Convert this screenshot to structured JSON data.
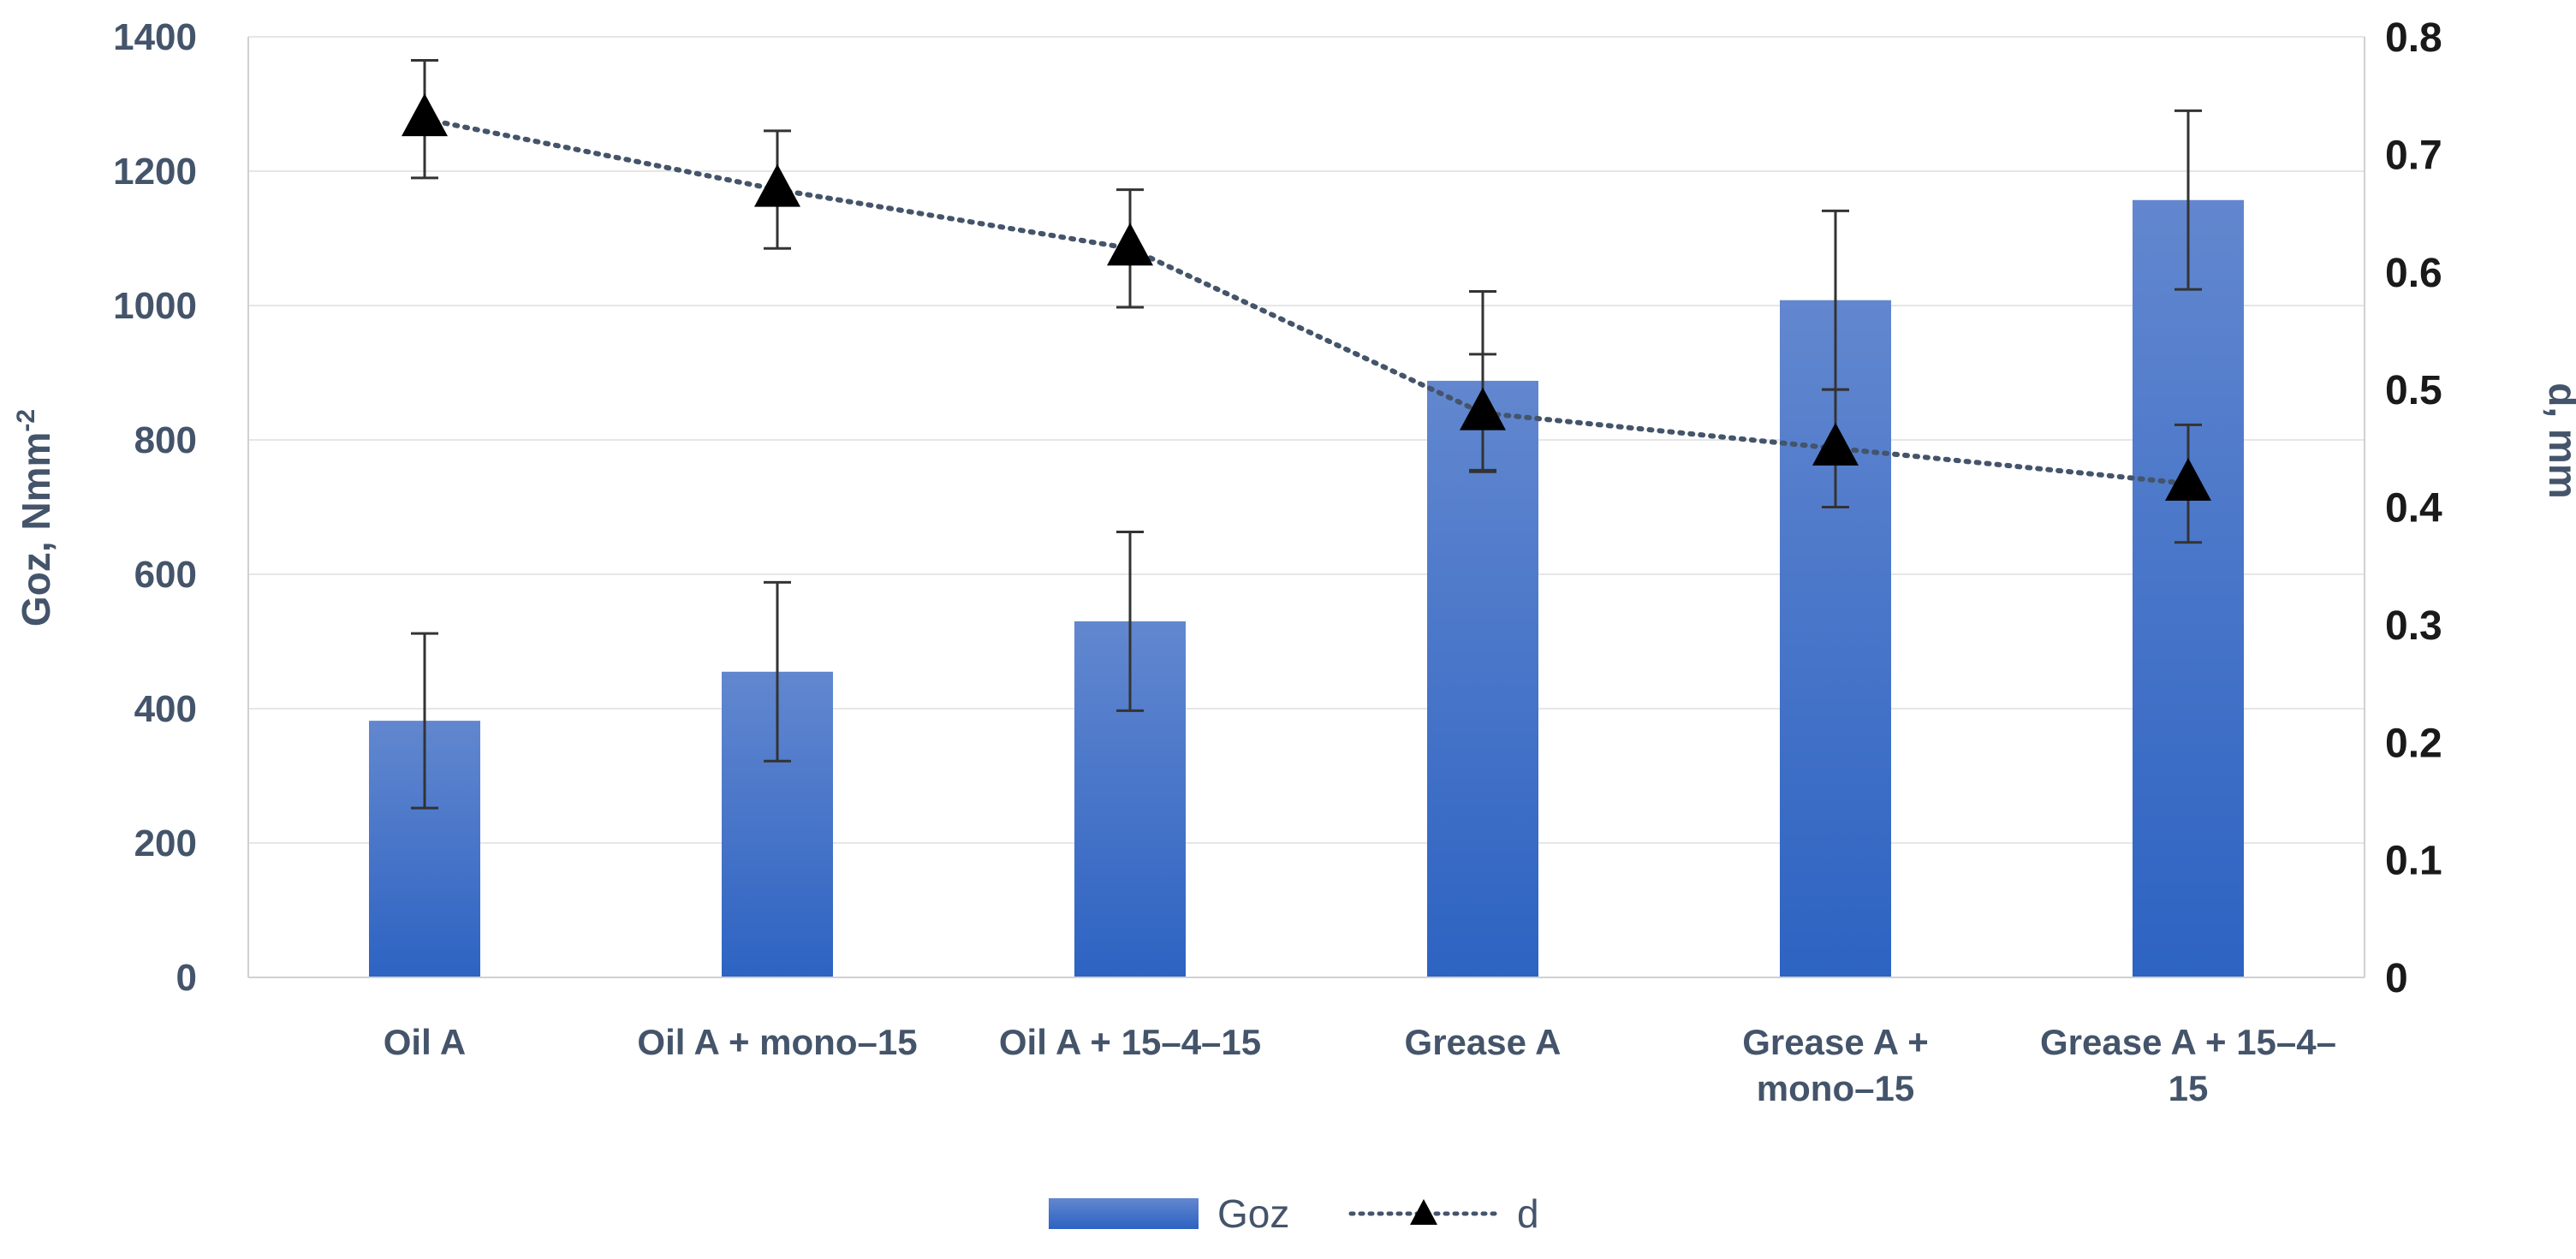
{
  "chart_data": {
    "type": "bar+line",
    "categories": [
      [
        "Oil A"
      ],
      [
        "Oil A + mono–15"
      ],
      [
        "Oil A + 15–4–15"
      ],
      [
        "Grease A"
      ],
      [
        "Grease A +",
        "mono–15"
      ],
      [
        "Grease A + 15–4–",
        "15"
      ]
    ],
    "series": [
      {
        "name": "Goz",
        "type": "bar",
        "axis": "left",
        "values": [
          382,
          455,
          530,
          888,
          1008,
          1157
        ],
        "error": [
          130,
          133,
          133,
          133,
          133,
          133
        ],
        "color": "#3a6fc9"
      },
      {
        "name": "d",
        "type": "line",
        "axis": "right",
        "values": [
          0.73,
          0.67,
          0.62,
          0.48,
          0.45,
          0.42
        ],
        "error": [
          0.05,
          0.05,
          0.05,
          0.05,
          0.05,
          0.05
        ],
        "color": "#44546a",
        "marker": "triangle"
      }
    ],
    "left_axis": {
      "title": "Goz, Nmm",
      "title_sup": "-2",
      "ylim": [
        0,
        1400
      ],
      "ticks": [
        "0",
        "200",
        "400",
        "600",
        "800",
        "1000",
        "1200",
        "1400"
      ]
    },
    "right_axis": {
      "title": "d, mm",
      "ylim": [
        0,
        0.8
      ],
      "ticks": [
        "0",
        "0.1",
        "0.2",
        "0.3",
        "0.4",
        "0.5",
        "0.6",
        "0.7",
        "0.8"
      ]
    },
    "grid": true,
    "legend_position": "bottom-center"
  }
}
